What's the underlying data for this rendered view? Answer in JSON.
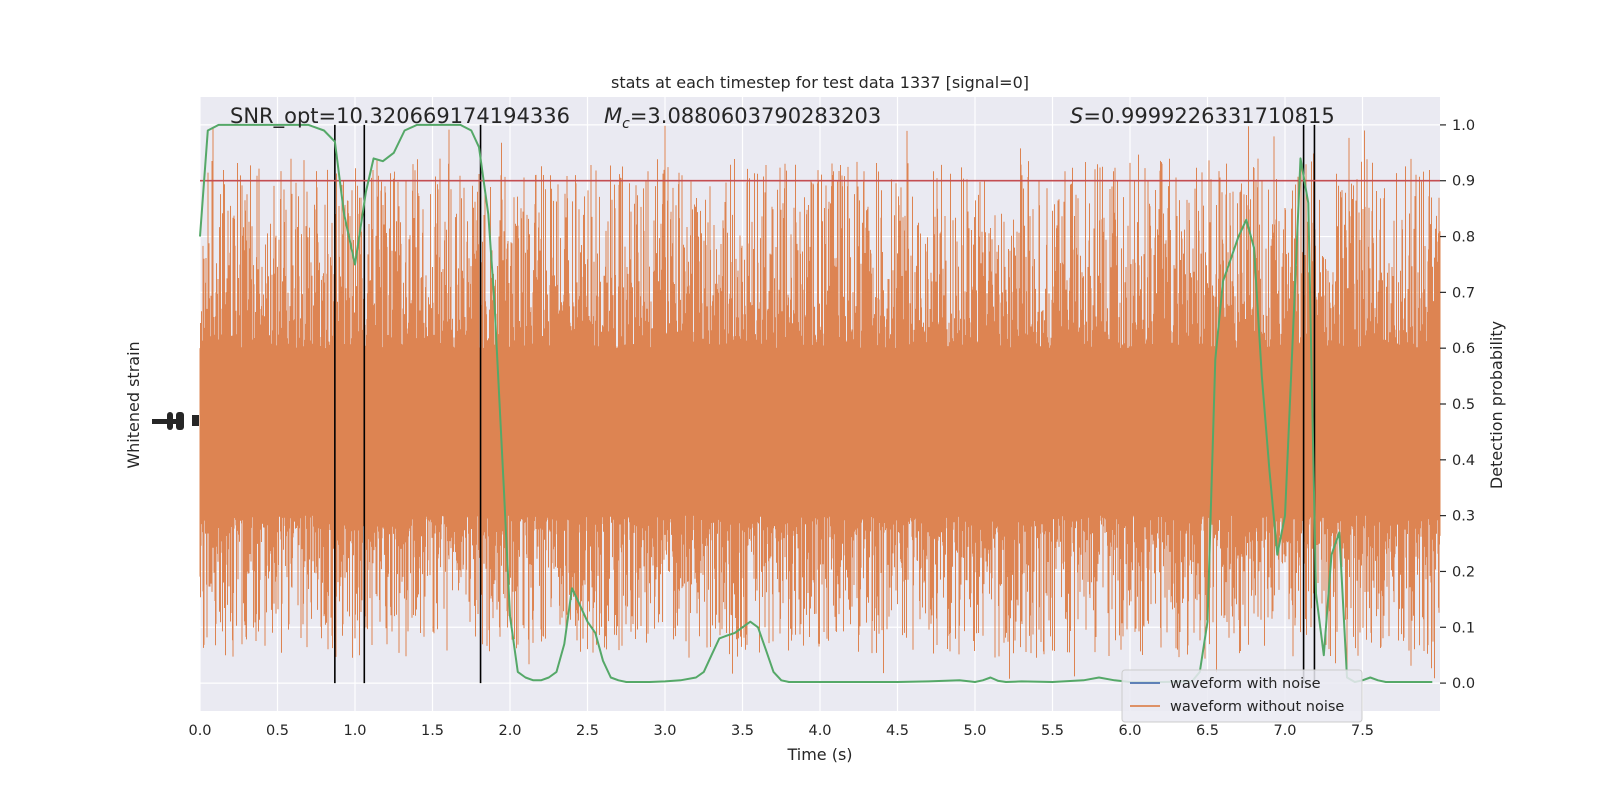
{
  "chart_data": {
    "type": "line",
    "title": "stats at each timestep for test data 1337 [signal=0]",
    "xlabel": "Time (s)",
    "ylabel_left": "Whitened strain",
    "ylabel_right": "Detection probability",
    "xlim": [
      0.0,
      8.0
    ],
    "ylim_right": [
      -0.05,
      1.05
    ],
    "xticks": [
      "0.0",
      "0.5",
      "1.0",
      "1.5",
      "2.0",
      "2.5",
      "3.0",
      "3.5",
      "4.0",
      "4.5",
      "5.0",
      "5.5",
      "6.0",
      "6.5",
      "7.0",
      "7.5"
    ],
    "yticks_right": [
      "0.0",
      "0.1",
      "0.2",
      "0.3",
      "0.4",
      "0.5",
      "0.6",
      "0.7",
      "0.8",
      "0.9",
      "1.0"
    ],
    "grid": true,
    "legend_position": "lower right",
    "annotations": {
      "snr": "SNR_opt=10.320669174194336",
      "mc_symbol": "M",
      "mc_sub": "c",
      "mc_value": "=3.0880603790283203",
      "s_symbol": "S",
      "s_value": "=0.9999226331710815"
    },
    "threshold": 0.9,
    "vertical_lines_x": [
      0.87,
      1.06,
      1.81,
      7.12,
      7.19
    ],
    "series": [
      {
        "name": "waveform with noise",
        "color": "#4c72b0",
        "description": "hidden beneath orange noise"
      },
      {
        "name": "waveform without noise",
        "color": "#dd8452",
        "band": {
          "core_low": 0.3,
          "core_high": 0.6,
          "spike_low": 0.0,
          "spike_high": 1.0
        }
      },
      {
        "name": "",
        "color": "#55a868",
        "x": [
          0.0,
          0.05,
          0.12,
          0.2,
          0.3,
          0.4,
          0.5,
          0.6,
          0.7,
          0.8,
          0.87,
          0.93,
          1.0,
          1.07,
          1.12,
          1.18,
          1.25,
          1.32,
          1.4,
          1.5,
          1.6,
          1.68,
          1.75,
          1.8,
          1.86,
          1.9,
          1.96,
          2.0,
          2.05,
          2.1,
          2.15,
          2.2,
          2.25,
          2.3,
          2.35,
          2.4,
          2.45,
          2.5,
          2.55,
          2.6,
          2.65,
          2.7,
          2.75,
          2.8,
          2.9,
          3.0,
          3.1,
          3.2,
          3.25,
          3.3,
          3.35,
          3.4,
          3.45,
          3.5,
          3.55,
          3.6,
          3.65,
          3.7,
          3.75,
          3.8,
          3.9,
          4.0,
          4.2,
          4.5,
          4.7,
          4.9,
          5.0,
          5.05,
          5.1,
          5.15,
          5.2,
          5.3,
          5.5,
          5.7,
          5.8,
          5.9,
          6.0,
          6.2,
          6.4,
          6.45,
          6.5,
          6.55,
          6.6,
          6.65,
          6.7,
          6.75,
          6.8,
          6.85,
          6.9,
          6.95,
          7.0,
          7.05,
          7.1,
          7.15,
          7.2,
          7.25,
          7.3,
          7.35,
          7.4,
          7.45,
          7.5,
          7.55,
          7.6,
          7.65,
          7.7,
          7.75,
          7.8,
          7.85,
          7.9,
          7.95
        ],
        "y": [
          0.8,
          0.99,
          1.0,
          1.0,
          1.0,
          1.0,
          1.0,
          1.0,
          1.0,
          0.99,
          0.97,
          0.84,
          0.75,
          0.88,
          0.94,
          0.935,
          0.95,
          0.99,
          1.0,
          1.0,
          1.0,
          1.0,
          0.99,
          0.96,
          0.84,
          0.68,
          0.35,
          0.12,
          0.02,
          0.01,
          0.005,
          0.005,
          0.01,
          0.02,
          0.07,
          0.17,
          0.14,
          0.11,
          0.09,
          0.04,
          0.01,
          0.005,
          0.002,
          0.002,
          0.002,
          0.003,
          0.005,
          0.01,
          0.02,
          0.05,
          0.08,
          0.085,
          0.09,
          0.1,
          0.11,
          0.1,
          0.06,
          0.02,
          0.005,
          0.002,
          0.002,
          0.002,
          0.002,
          0.002,
          0.003,
          0.005,
          0.002,
          0.005,
          0.01,
          0.004,
          0.002,
          0.003,
          0.002,
          0.005,
          0.01,
          0.005,
          0.002,
          0.002,
          0.003,
          0.02,
          0.11,
          0.58,
          0.72,
          0.76,
          0.8,
          0.83,
          0.78,
          0.55,
          0.38,
          0.23,
          0.3,
          0.62,
          0.94,
          0.86,
          0.16,
          0.05,
          0.23,
          0.27,
          0.01,
          0.002,
          0.005,
          0.01,
          0.005,
          0.002,
          0.002,
          0.002,
          0.002,
          0.002,
          0.002,
          0.002
        ]
      }
    ],
    "threshold_color": "#c44e52",
    "background_color": "#eaeaf2"
  }
}
